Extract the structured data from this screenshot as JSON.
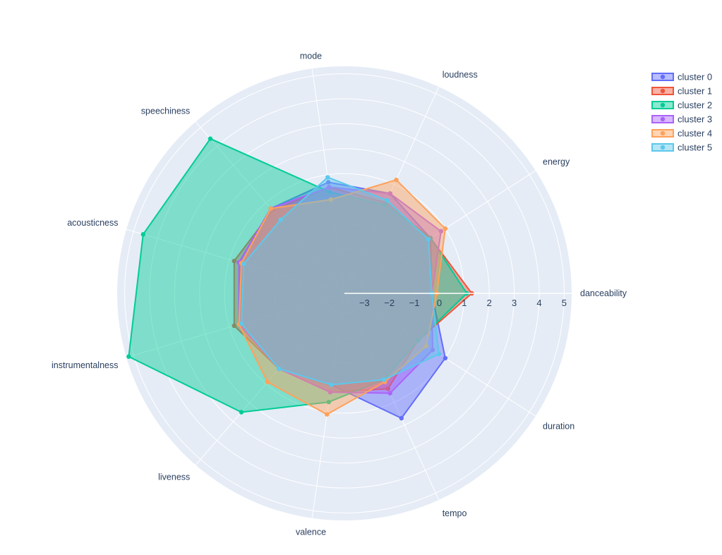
{
  "chart_data": {
    "type": "radar",
    "categories": [
      "danceability",
      "energy",
      "loudness",
      "mode",
      "speechiness",
      "acousticness",
      "instrumentalness",
      "liveness",
      "valence",
      "tempo",
      "duration"
    ],
    "radial_range": [
      -3.8,
      5.3
    ],
    "radial_ticks": [
      -3,
      -2,
      -1,
      0,
      1,
      2,
      3,
      4,
      5
    ],
    "radial_tick_labels": [
      "−3",
      "−2",
      "−1",
      "0",
      "1",
      "2",
      "3",
      "4",
      "5"
    ],
    "grid": true,
    "legend_position": "top-right",
    "series": [
      {
        "name": "cluster 0",
        "color": "#636efa",
        "values": [
          -0.3,
          0.3,
          0.6,
          0.7,
          0.7,
          0.6,
          0.6,
          0.2,
          -0.1,
          1.7,
          1.0
        ]
      },
      {
        "name": "cluster 1",
        "color": "#ef553b",
        "values": [
          1.3,
          0.3,
          0.2,
          0.5,
          0.6,
          0.8,
          0.8,
          0.2,
          0.2,
          0.4,
          -0.3
        ]
      },
      {
        "name": "cluster 2",
        "color": "#00cc96",
        "values": [
          1.1,
          0.3,
          0.1,
          0.3,
          4.4,
          4.6,
          5.2,
          2.5,
          0.6,
          0.0,
          -0.3
        ]
      },
      {
        "name": "cluster 3",
        "color": "#ab63fa",
        "values": [
          -0.3,
          0.8,
          0.6,
          0.5,
          0.7,
          0.6,
          0.6,
          0.2,
          0.2,
          0.6,
          0.4
        ]
      },
      {
        "name": "cluster 4",
        "color": "#ffa15a",
        "values": [
          -0.1,
          1.0,
          1.2,
          0.0,
          0.7,
          0.5,
          0.6,
          0.9,
          1.1,
          0.1,
          0.1
        ]
      },
      {
        "name": "cluster 5",
        "color": "#5dc8ec",
        "values": [
          -0.3,
          0.2,
          0.3,
          0.9,
          0.1,
          0.4,
          0.5,
          0.2,
          -0.1,
          0.0,
          0.7
        ]
      }
    ]
  }
}
